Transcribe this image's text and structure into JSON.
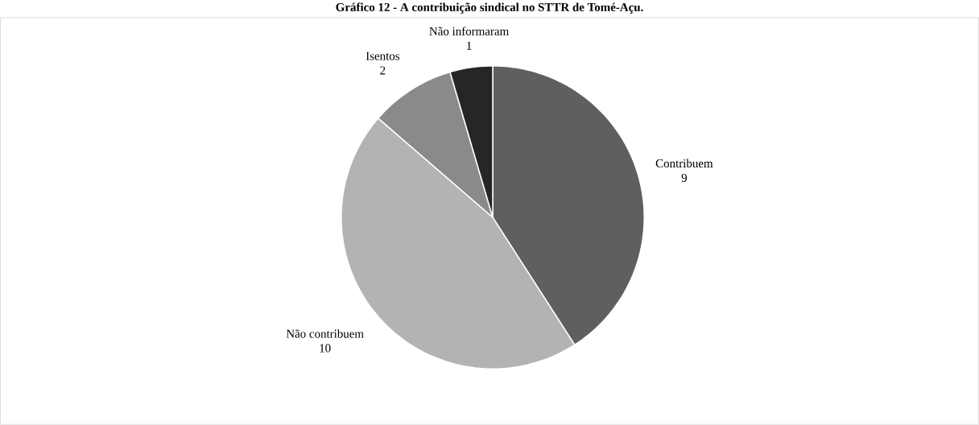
{
  "chart_data": {
    "type": "pie",
    "title": "Gráfico 12 - A contribuição sindical no STTR de Tomé-Açu.",
    "categories": [
      "Contribuem",
      "Não contribuem",
      "Isentos",
      "Não informaram"
    ],
    "values": [
      9,
      10,
      2,
      1
    ],
    "colors": [
      "#5f5f5f",
      "#b3b3b3",
      "#8a8a8a",
      "#262626"
    ],
    "data_labels": true
  }
}
